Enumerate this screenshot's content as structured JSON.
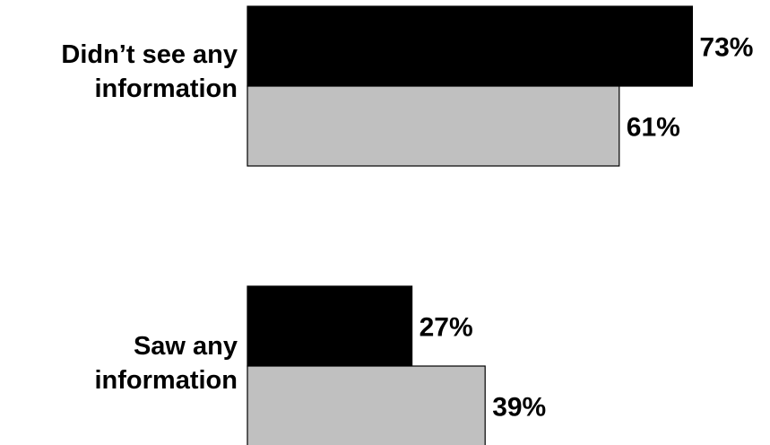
{
  "chart_data": {
    "type": "bar",
    "orientation": "horizontal",
    "categories": [
      "Didn’t see any\ninformation",
      "Saw any\ninformation"
    ],
    "series": [
      {
        "values": [
          73,
          27
        ],
        "labels": [
          "73%",
          "27%"
        ],
        "color": "#000000"
      },
      {
        "values": [
          61,
          39
        ],
        "labels": [
          "61%",
          "39%"
        ],
        "color": "#c0c0c0"
      }
    ],
    "unit": "%",
    "xlim": [
      0,
      100
    ],
    "grid": false,
    "legend": "none",
    "title": "",
    "xlabel": "",
    "ylabel": ""
  }
}
